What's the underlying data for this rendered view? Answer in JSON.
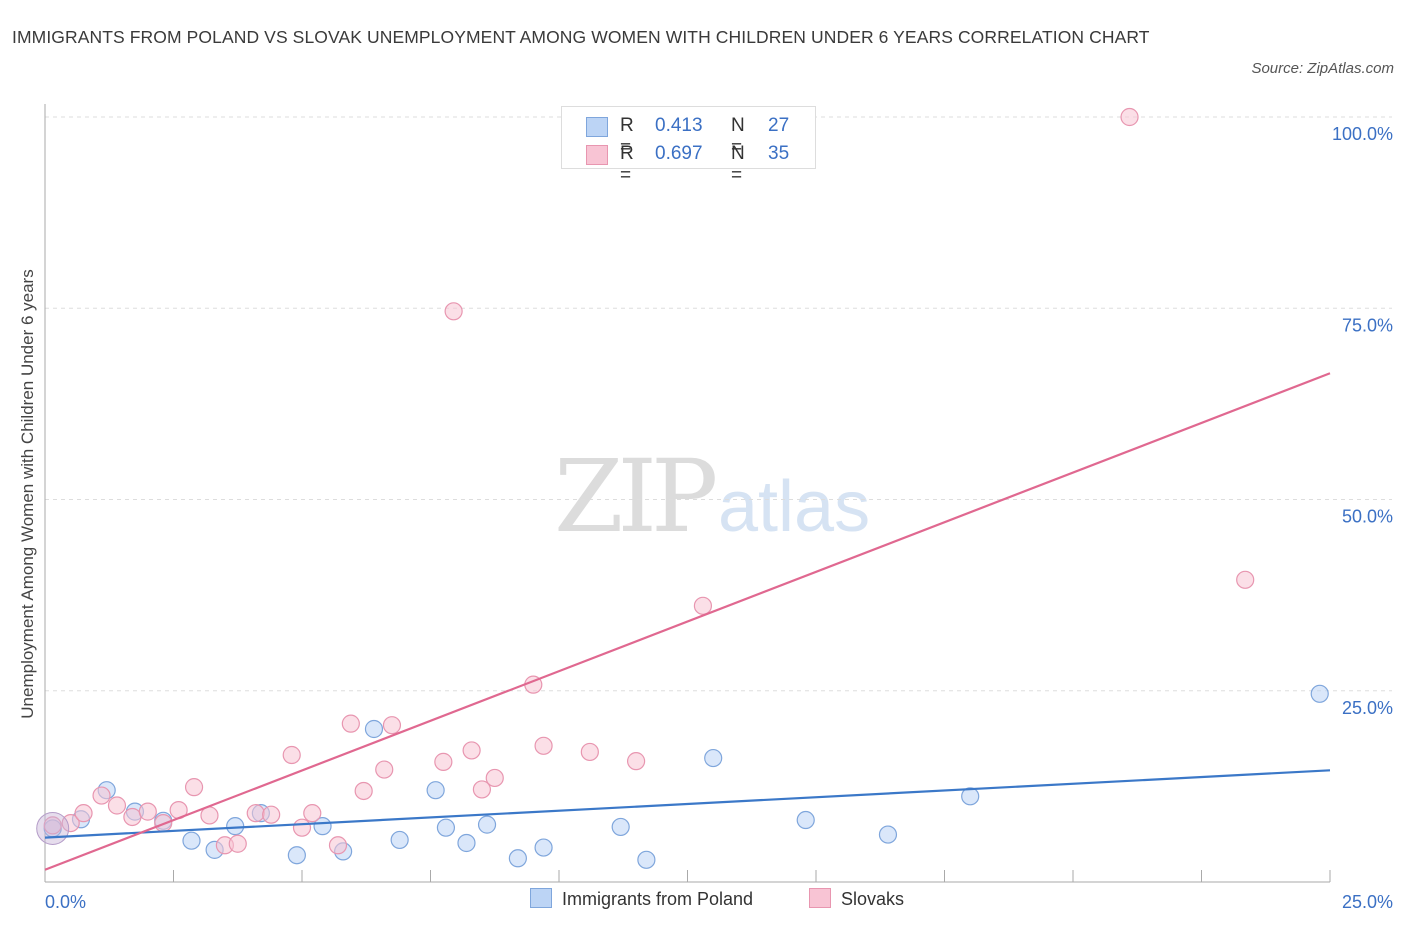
{
  "title": "IMMIGRANTS FROM POLAND VS SLOVAK UNEMPLOYMENT AMONG WOMEN WITH CHILDREN UNDER 6 YEARS CORRELATION CHART",
  "source": "Source: ZipAtlas.com",
  "watermark": {
    "zip": "ZIP",
    "atlas": "atlas"
  },
  "colors": {
    "blue": "#3b78c8",
    "blue_fill": "#bcd4f5",
    "pink": "#e06890",
    "pink_fill": "#f8c4d4",
    "tick_label": "#3b70c4"
  },
  "legend_top": [
    {
      "r_label": "R =",
      "r_value": "0.413",
      "n_label": "N =",
      "n_value": "27"
    },
    {
      "r_label": "R =",
      "r_value": "0.697",
      "n_label": "N =",
      "n_value": "35"
    }
  ],
  "chart_data": {
    "type": "scatter",
    "title": "IMMIGRANTS FROM POLAND VS SLOVAK UNEMPLOYMENT AMONG WOMEN WITH CHILDREN UNDER 6 YEARS CORRELATION CHART",
    "xlabel": "",
    "ylabel": "Unemployment Among Women with Children Under 6 years",
    "xlim": [
      0,
      25
    ],
    "ylim": [
      0,
      100
    ],
    "x_tick_labels": [
      "0.0%",
      "25.0%"
    ],
    "y_tick_labels": [
      "100.0%",
      "75.0%",
      "50.0%",
      "25.0%"
    ],
    "y_ticks": [
      100,
      75,
      50,
      25
    ],
    "grid": true,
    "legend": "bottom-center",
    "series": [
      {
        "name": "Immigrants from Poland",
        "color": "#3b78c8",
        "trend": {
          "x": [
            0,
            25
          ],
          "y": [
            5.8,
            14.6
          ]
        },
        "points": [
          {
            "x": 0.15,
            "y": 7.0
          },
          {
            "x": 0.7,
            "y": 8.2
          },
          {
            "x": 1.2,
            "y": 12.0
          },
          {
            "x": 1.75,
            "y": 9.2
          },
          {
            "x": 2.3,
            "y": 8.0
          },
          {
            "x": 2.85,
            "y": 5.4
          },
          {
            "x": 3.3,
            "y": 4.2
          },
          {
            "x": 3.7,
            "y": 7.3
          },
          {
            "x": 4.2,
            "y": 9.0
          },
          {
            "x": 4.9,
            "y": 3.5
          },
          {
            "x": 5.4,
            "y": 7.3
          },
          {
            "x": 5.8,
            "y": 4.0
          },
          {
            "x": 6.4,
            "y": 20.0
          },
          {
            "x": 6.9,
            "y": 5.5
          },
          {
            "x": 7.6,
            "y": 12.0
          },
          {
            "x": 7.8,
            "y": 7.1
          },
          {
            "x": 8.2,
            "y": 5.1
          },
          {
            "x": 8.6,
            "y": 7.5
          },
          {
            "x": 9.2,
            "y": 3.1
          },
          {
            "x": 9.7,
            "y": 4.5
          },
          {
            "x": 11.2,
            "y": 7.2
          },
          {
            "x": 11.7,
            "y": 2.9
          },
          {
            "x": 13.0,
            "y": 16.2
          },
          {
            "x": 14.8,
            "y": 8.1
          },
          {
            "x": 16.4,
            "y": 6.2
          },
          {
            "x": 18.0,
            "y": 11.2
          },
          {
            "x": 24.8,
            "y": 24.6
          }
        ]
      },
      {
        "name": "Slovaks",
        "color": "#e06890",
        "trend": {
          "x": [
            0,
            25
          ],
          "y": [
            1.6,
            66.5
          ]
        },
        "points": [
          {
            "x": 0.15,
            "y": 7.4
          },
          {
            "x": 0.5,
            "y": 7.7
          },
          {
            "x": 0.75,
            "y": 9.0
          },
          {
            "x": 1.1,
            "y": 11.3
          },
          {
            "x": 1.4,
            "y": 10.0
          },
          {
            "x": 1.7,
            "y": 8.5
          },
          {
            "x": 2.0,
            "y": 9.2
          },
          {
            "x": 2.3,
            "y": 7.7
          },
          {
            "x": 2.6,
            "y": 9.4
          },
          {
            "x": 2.9,
            "y": 12.4
          },
          {
            "x": 3.2,
            "y": 8.7
          },
          {
            "x": 3.5,
            "y": 4.8
          },
          {
            "x": 3.75,
            "y": 5.0
          },
          {
            "x": 4.1,
            "y": 9.0
          },
          {
            "x": 4.4,
            "y": 8.8
          },
          {
            "x": 4.8,
            "y": 16.6
          },
          {
            "x": 5.0,
            "y": 7.1
          },
          {
            "x": 5.2,
            "y": 9.0
          },
          {
            "x": 5.7,
            "y": 4.8
          },
          {
            "x": 5.95,
            "y": 20.7
          },
          {
            "x": 6.2,
            "y": 11.9
          },
          {
            "x": 6.6,
            "y": 14.7
          },
          {
            "x": 6.75,
            "y": 20.5
          },
          {
            "x": 7.75,
            "y": 15.7
          },
          {
            "x": 7.95,
            "y": 74.6
          },
          {
            "x": 8.3,
            "y": 17.2
          },
          {
            "x": 8.5,
            "y": 12.1
          },
          {
            "x": 8.75,
            "y": 13.6
          },
          {
            "x": 9.5,
            "y": 25.8
          },
          {
            "x": 9.7,
            "y": 17.8
          },
          {
            "x": 10.6,
            "y": 17.0
          },
          {
            "x": 11.5,
            "y": 15.8
          },
          {
            "x": 12.8,
            "y": 36.1
          },
          {
            "x": 21.1,
            "y": 100.0
          },
          {
            "x": 23.35,
            "y": 39.5
          }
        ]
      }
    ]
  }
}
